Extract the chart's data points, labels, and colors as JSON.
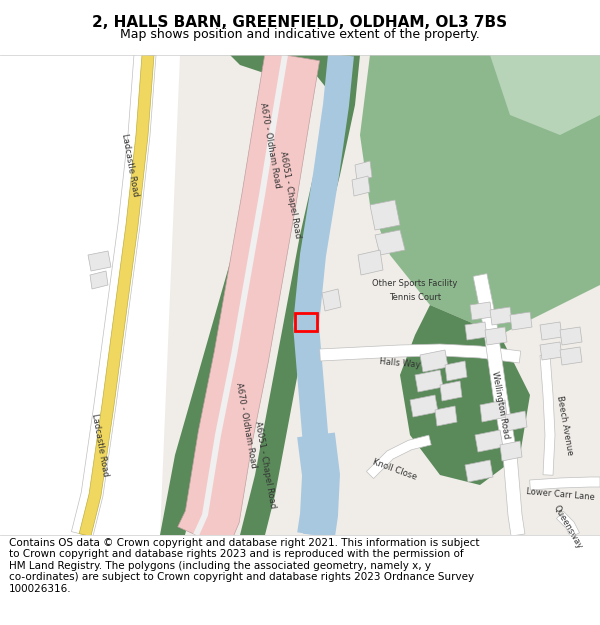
{
  "title_line1": "2, HALLS BARN, GREENFIELD, OLDHAM, OL3 7BS",
  "title_line2": "Map shows position and indicative extent of the property.",
  "footer_lines": "Contains OS data © Crown copyright and database right 2021. This information is subject\nto Crown copyright and database rights 2023 and is reproduced with the permission of\nHM Land Registry. The polygons (including the associated geometry, namely x, y\nco-ordinates) are subject to Crown copyright and database rights 2023 Ordnance Survey\n100026316.",
  "bg_map_color": "#f0ede8",
  "white_area": "#ffffff",
  "green_dark": "#5a8a5a",
  "green_mid": "#8db88d",
  "green_light": "#b8d4b8",
  "blue_water": "#a8c8e0",
  "road_pink": "#f5c8c8",
  "road_yellow": "#f0d860",
  "road_white": "#ffffff",
  "building_fill": "#e8e8e8",
  "building_edge": "#b8b8b8",
  "marker_color": "#ff0000",
  "title_fontsize": 11,
  "subtitle_fontsize": 9,
  "footer_fontsize": 7.5,
  "label_fontsize": 6,
  "label_color": "#333333"
}
